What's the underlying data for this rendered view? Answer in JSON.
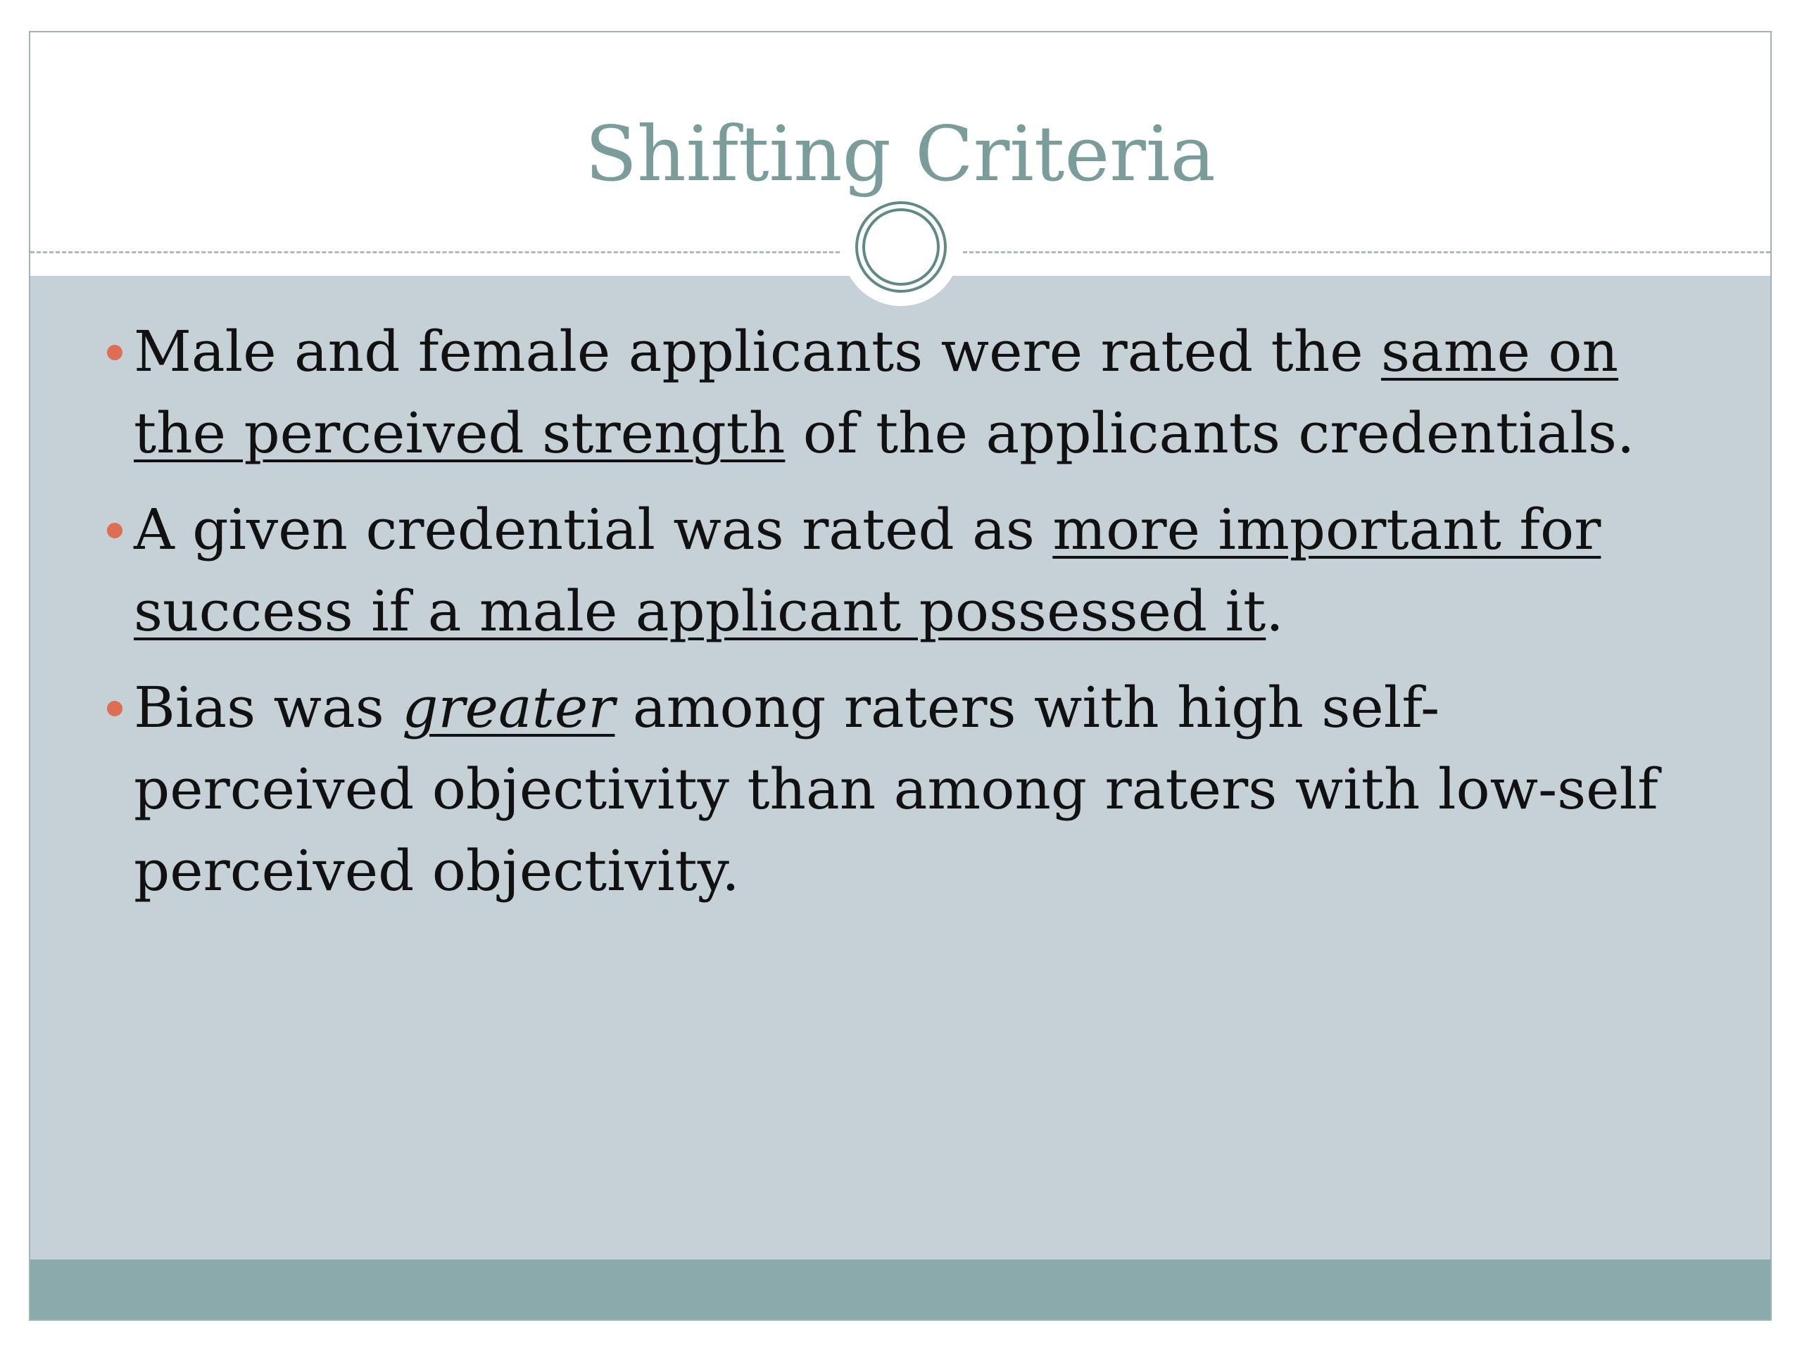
{
  "slide": {
    "title": "Shifting Criteria",
    "colors": {
      "title": "#7a9c9a",
      "content_background": "#c5d1d6",
      "footer": "#8aaaac",
      "bullet": "#dd6e53",
      "ring": "#5f8a86"
    },
    "bullets": [
      {
        "lines": [
          [
            {
              "t": "Male and female applicants were rated the "
            },
            {
              "t": "same on",
              "u": true
            }
          ],
          [
            {
              "t": "the perceived strength",
              "u": true
            },
            {
              "t": " of the applicants credentials."
            }
          ]
        ]
      },
      {
        "lines": [
          [
            {
              "t": "A given credential was rated as "
            },
            {
              "t": "more important for",
              "u": true
            }
          ],
          [
            {
              "t": "success if a male applicant possessed it",
              "u": true
            },
            {
              "t": "."
            }
          ]
        ]
      },
      {
        "lines": [
          [
            {
              "t": "Bias was "
            },
            {
              "t": "greater",
              "u": true,
              "i": true
            },
            {
              "t": " among raters with high self-"
            }
          ],
          [
            {
              "t": "perceived objectivity than among raters with low-self"
            }
          ],
          [
            {
              "t": "perceived objectivity."
            }
          ]
        ]
      }
    ]
  }
}
